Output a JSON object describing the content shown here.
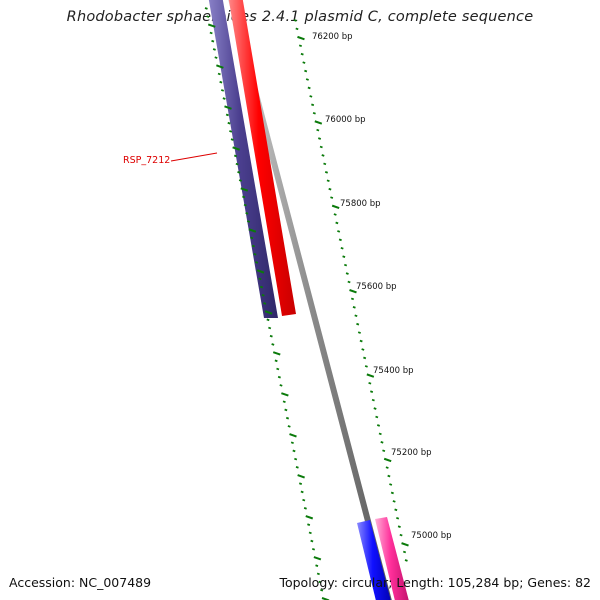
{
  "title": "Rhodobacter sphaeroides 2.4.1 plasmid C, complete sequence",
  "ticks": [
    "76200 bp",
    "76000 bp",
    "75800 bp",
    "75600 bp",
    "75400 bp",
    "75200 bp",
    "75000 bp"
  ],
  "gene_label": "RSP_7212",
  "footer": {
    "accession": "Accession: NC_007489",
    "summary": "Topology: circular; Length: 105,284 bp; Genes: 82"
  },
  "colors": {
    "backbone": "#8c8c8c",
    "gene_navy": "#4b3f8f",
    "gene_red": "#ff0000",
    "gene_blue": "#1010ff",
    "gene_pink": "#ff2f9a",
    "tick_green": "#0a7a0a",
    "label_red": "#dd0000"
  }
}
